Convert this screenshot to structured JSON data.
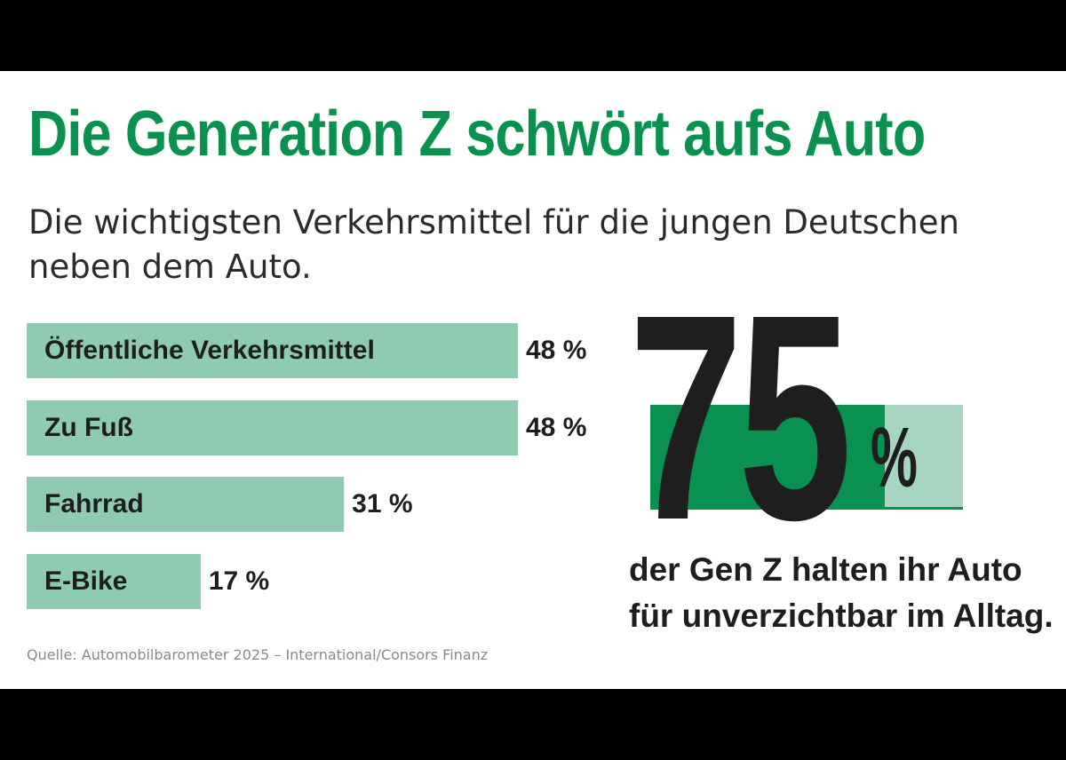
{
  "title": "Die Generation Z schwört aufs Auto",
  "subtitle": "Die wichtigsten Verkehrsmittel für die jungen Deutschen neben dem Auto.",
  "source": "Quelle: Automobilbarometer 2025 – International/Consors Finanz",
  "colors": {
    "title": "#0a9150",
    "bar": "#8fcbb0",
    "gauge_fill": "#0a9150",
    "gauge_back": "#a6d6c1",
    "text": "#1e1e1e"
  },
  "chart_data": {
    "type": "bar",
    "orientation": "horizontal",
    "categories": [
      "Öffentliche Verkehrsmittel",
      "Zu Fuß",
      "Fahrrad",
      "E-Bike"
    ],
    "values": [
      48,
      48,
      31,
      17
    ],
    "value_labels": [
      "48 %",
      "48 %",
      "31 %",
      "17 %"
    ],
    "unit": "%",
    "title": "Die Generation Z schwört aufs Auto",
    "xlabel": "",
    "ylabel": ""
  },
  "highlight": {
    "number": "75",
    "unit": "%",
    "value": 75,
    "text": "der Gen Z halten ihr Auto für unverzichtbar im Alltag."
  }
}
